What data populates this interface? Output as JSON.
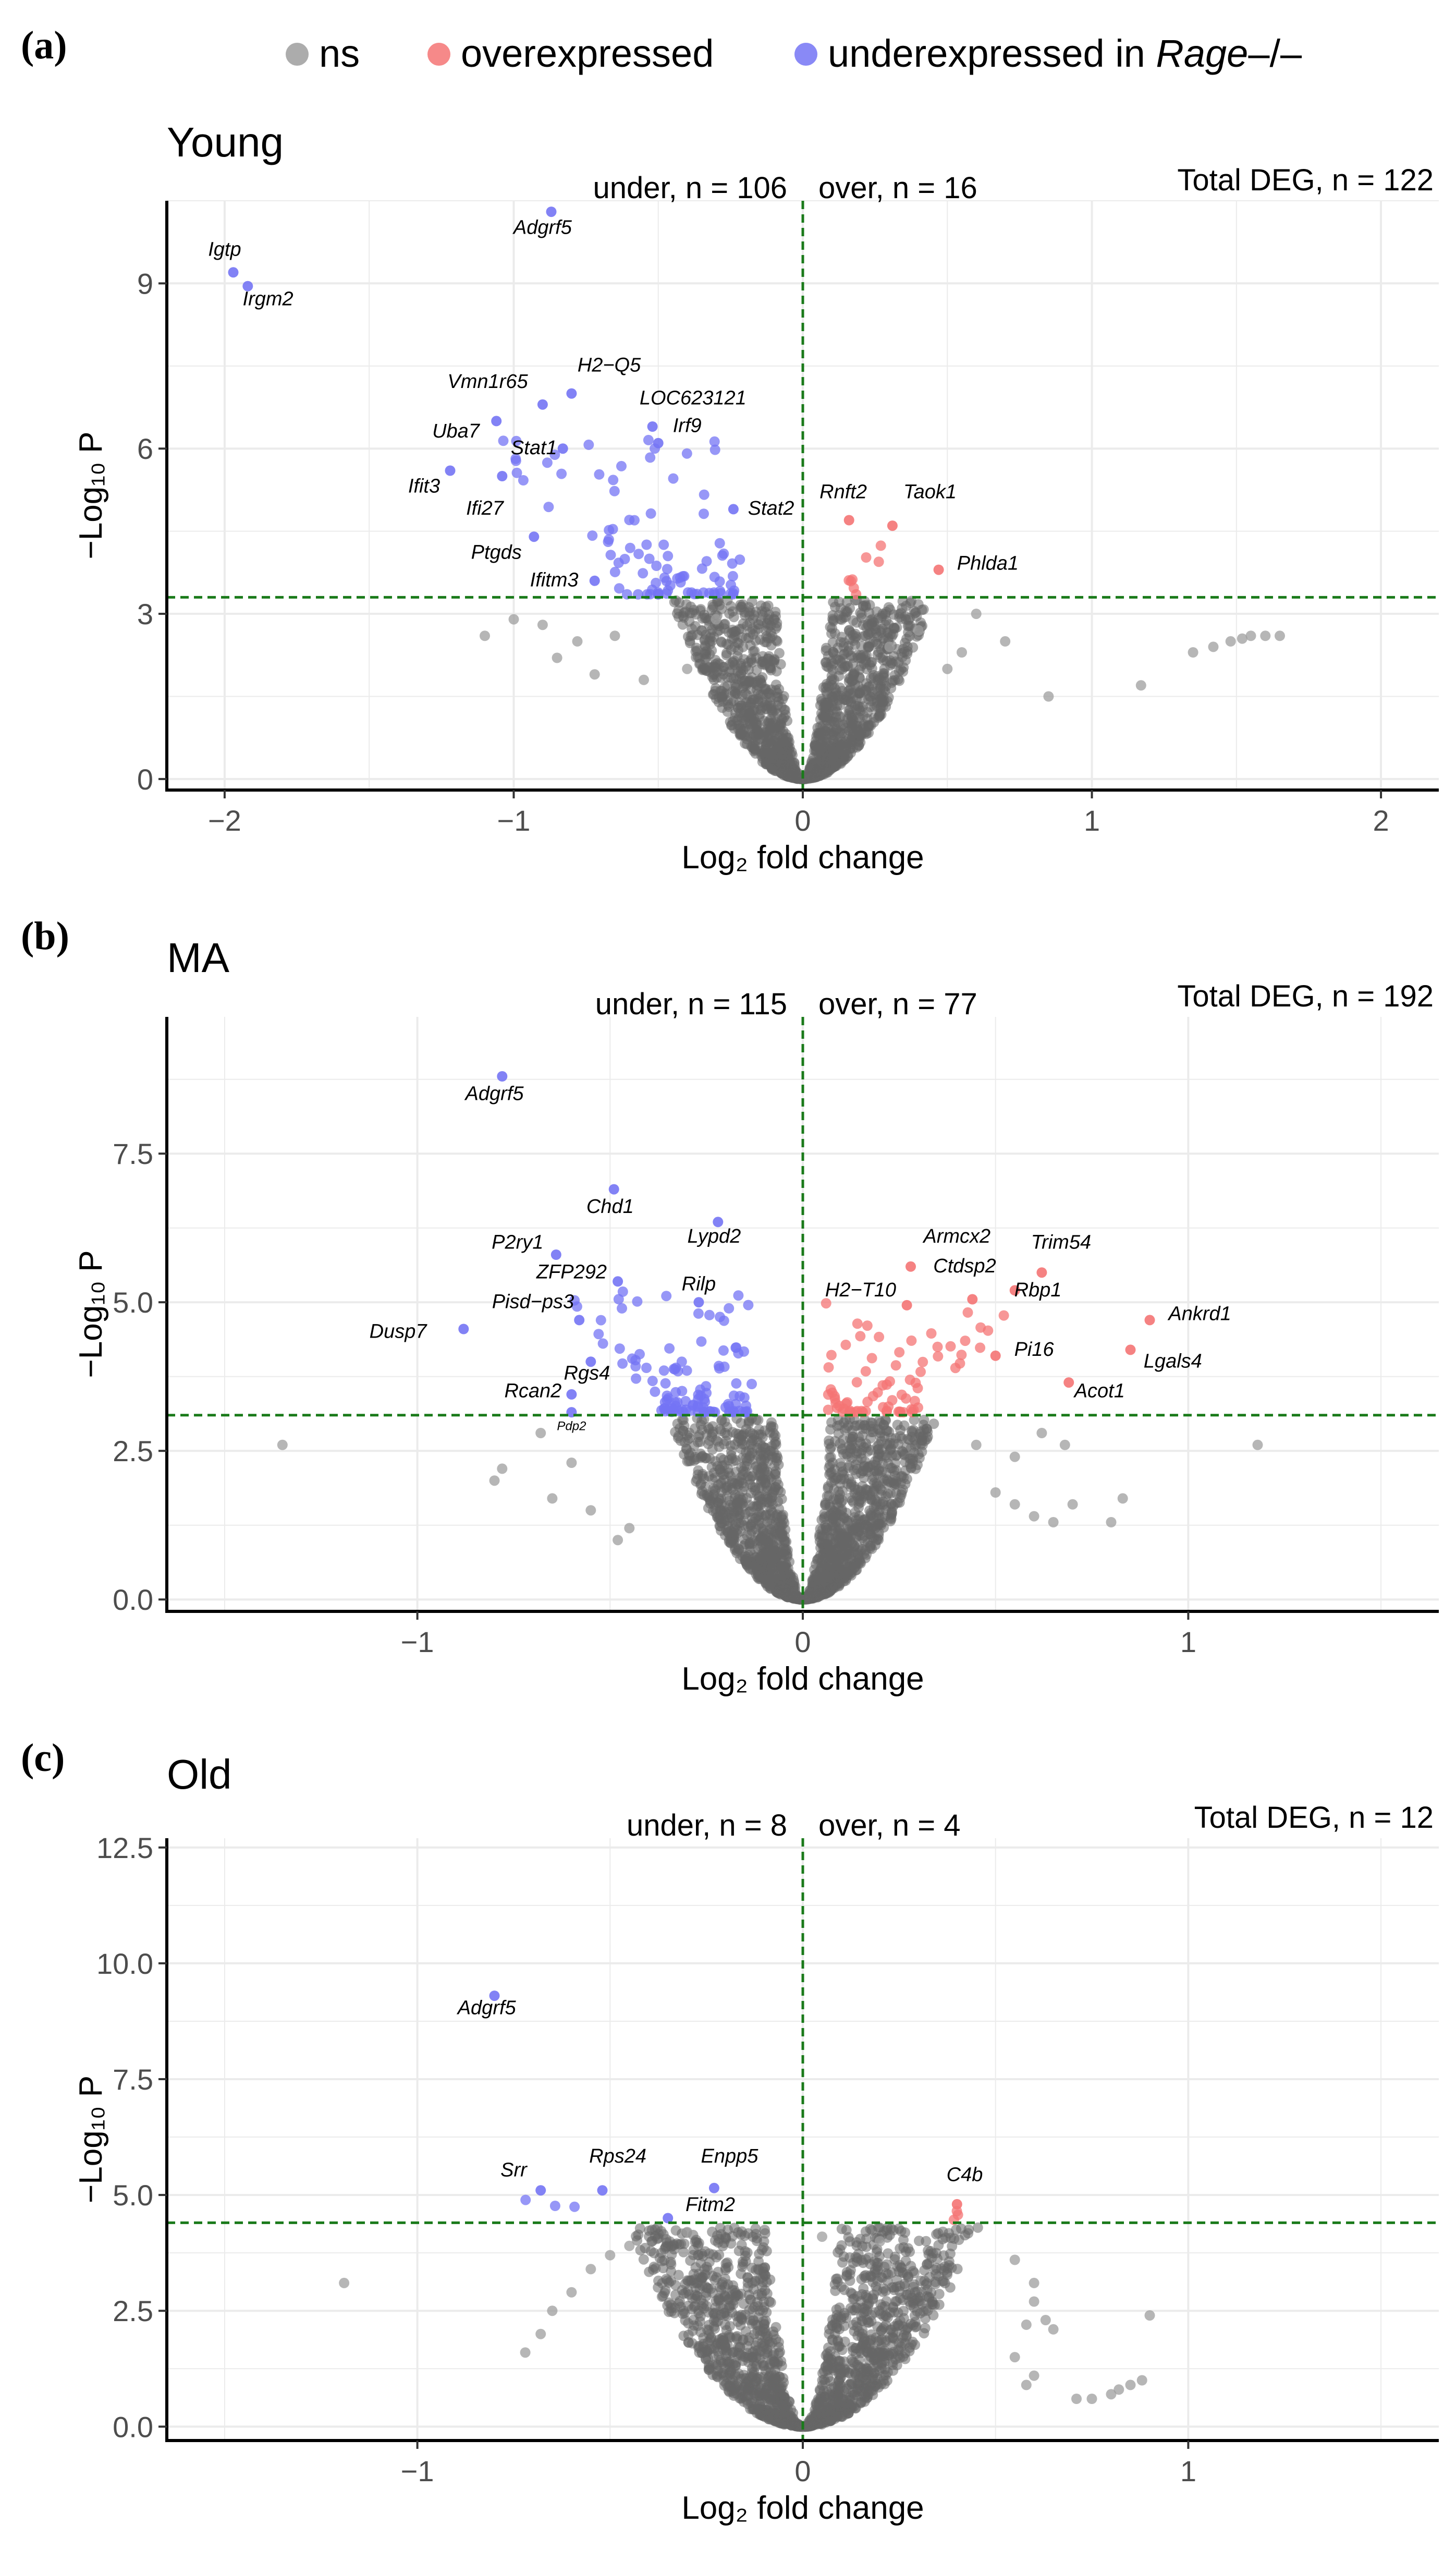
{
  "chart_data": {
    "type": "scatter",
    "subtype": "volcano",
    "legend": {
      "placement": "top",
      "entries": [
        {
          "key": "ns",
          "label": "ns",
          "color": "#9e9e9e"
        },
        {
          "key": "over",
          "label": "overexpressed",
          "color": "#f47474"
        },
        {
          "key": "under",
          "label": "underexpressed in ",
          "label_italic": "Rage",
          "label_suffix": "–/–",
          "color": "#7474f4"
        }
      ]
    },
    "ns_dense_color": "#666666",
    "threshold_line_color": "#1a7a1a",
    "panels": [
      {
        "panel_label": "(a)",
        "title": "Young",
        "under_text": "under, n = 106",
        "over_text": "over, n = 16",
        "total_text": "Total DEG, n = 122",
        "xlabel": "Log₂ fold change",
        "ylabel": "−Log₁₀ P",
        "xlim": [
          -2.2,
          2.2
        ],
        "ylim": [
          -0.2,
          10.5
        ],
        "xticks": [
          -2,
          -1,
          0,
          1,
          2
        ],
        "xtick_labels": [
          "−2",
          "−1",
          "0",
          "1",
          "2"
        ],
        "yticks": [
          0,
          3,
          6,
          9
        ],
        "ytick_labels": [
          "0",
          "3",
          "6",
          "9"
        ],
        "threshold_p": 3.3,
        "seed": 11,
        "cloud": {
          "n": 1500,
          "xspread": 0.17,
          "yscale": 3.2,
          "top": 3.25
        },
        "ns_extra": [
          [
            -0.85,
            2.2
          ],
          [
            -0.72,
            1.9
          ],
          [
            -0.55,
            1.8
          ],
          [
            -0.4,
            2.0
          ],
          [
            -0.9,
            2.8
          ],
          [
            -0.65,
            2.6
          ],
          [
            -0.3,
            2.9
          ],
          [
            0.4,
            2.7
          ],
          [
            0.55,
            2.3
          ],
          [
            0.6,
            3.0
          ],
          [
            0.85,
            1.5
          ],
          [
            1.17,
            1.7
          ],
          [
            1.35,
            2.3
          ],
          [
            1.42,
            2.4
          ],
          [
            1.48,
            2.5
          ],
          [
            1.52,
            2.55
          ],
          [
            1.55,
            2.6
          ],
          [
            1.6,
            2.6
          ],
          [
            1.65,
            2.6
          ],
          [
            -1.1,
            2.6
          ],
          [
            -1.0,
            2.9
          ],
          [
            -0.78,
            2.5
          ],
          [
            0.3,
            2.4
          ],
          [
            0.5,
            2.0
          ],
          [
            0.7,
            2.5
          ]
        ],
        "genes": [
          {
            "label": "Igtp",
            "x": -1.97,
            "y": 9.2,
            "type": "under",
            "lx": -2.0,
            "ly": 9.5
          },
          {
            "label": "Irgm2",
            "x": -1.92,
            "y": 8.95,
            "type": "under",
            "lx": -1.85,
            "ly": 8.6
          },
          {
            "label": "Adgrf5",
            "x": -0.87,
            "y": 10.3,
            "type": "under",
            "lx": -0.9,
            "ly": 9.9
          },
          {
            "label": "H2−Q5",
            "x": -0.8,
            "y": 7.0,
            "type": "under",
            "lx": -0.67,
            "ly": 7.4
          },
          {
            "label": "Vmn1r65",
            "x": -0.9,
            "y": 6.8,
            "type": "under",
            "lx": -1.09,
            "ly": 7.1
          },
          {
            "label": "LOC623121",
            "x": -0.52,
            "y": 6.4,
            "type": "under",
            "lx": -0.38,
            "ly": 6.8
          },
          {
            "label": "Uba7",
            "x": -1.06,
            "y": 6.5,
            "type": "under",
            "lx": -1.2,
            "ly": 6.2
          },
          {
            "label": "Stat1",
            "x": -0.83,
            "y": 6.0,
            "type": "under",
            "lx": -0.93,
            "ly": 5.9
          },
          {
            "label": "Irf9",
            "x": -0.5,
            "y": 6.1,
            "type": "under",
            "lx": -0.4,
            "ly": 6.3
          },
          {
            "label": "Ifit3",
            "x": -1.22,
            "y": 5.6,
            "type": "under",
            "lx": -1.31,
            "ly": 5.2
          },
          {
            "label": "Ifi27",
            "x": -1.04,
            "y": 5.5,
            "type": "under",
            "lx": -1.1,
            "ly": 4.8
          },
          {
            "label": "Stat2",
            "x": -0.24,
            "y": 4.9,
            "type": "under",
            "lx": -0.11,
            "ly": 4.8
          },
          {
            "label": "Ptgds",
            "x": -0.93,
            "y": 4.4,
            "type": "under",
            "lx": -1.06,
            "ly": 4.0
          },
          {
            "label": "Ifitm3",
            "x": -0.72,
            "y": 3.6,
            "type": "under",
            "lx": -0.86,
            "ly": 3.5
          },
          {
            "label": "Rnft2",
            "x": 0.16,
            "y": 4.7,
            "type": "over",
            "lx": 0.14,
            "ly": 5.1
          },
          {
            "label": "Taok1",
            "x": 0.31,
            "y": 4.6,
            "type": "over",
            "lx": 0.44,
            "ly": 5.1
          },
          {
            "label": "Phlda1",
            "x": 0.47,
            "y": 3.8,
            "type": "over",
            "lx": 0.64,
            "ly": 3.8
          }
        ],
        "sig_extra": [
          {
            "type": "under",
            "n": 90,
            "xmin": -1.15,
            "xmax": -0.2,
            "ymin": 3.35,
            "ymax": 6.4,
            "bias": 2.2
          },
          {
            "type": "over",
            "n": 8,
            "xmin": 0.12,
            "xmax": 0.32,
            "ymin": 3.35,
            "ymax": 4.4,
            "bias": 1.5
          }
        ]
      },
      {
        "panel_label": "(b)",
        "title": "MA",
        "under_text": "under, n = 115",
        "over_text": "over, n = 77",
        "total_text": "Total DEG, n = 192",
        "xlabel": "Log₂ fold change",
        "ylabel": "−Log₁₀ P",
        "xlim": [
          -1.65,
          1.65
        ],
        "ylim": [
          -0.2,
          9.8
        ],
        "xticks": [
          -1,
          0,
          1
        ],
        "xtick_labels": [
          "−1",
          "0",
          "1"
        ],
        "yticks": [
          0,
          2.5,
          5,
          7.5
        ],
        "ytick_labels": [
          "0.0",
          "2.5",
          "5.0",
          "7.5"
        ],
        "threshold_p": 3.1,
        "seed": 23,
        "cloud": {
          "n": 1700,
          "xspread": 0.13,
          "yscale": 3.0,
          "top": 3.05
        },
        "ns_extra": [
          [
            -1.35,
            2.6
          ],
          [
            -0.78,
            2.2
          ],
          [
            -0.8,
            2.0
          ],
          [
            -0.65,
            1.7
          ],
          [
            -0.55,
            1.5
          ],
          [
            -0.48,
            1.0
          ],
          [
            -0.6,
            2.3
          ],
          [
            -0.45,
            1.2
          ],
          [
            0.5,
            1.8
          ],
          [
            0.55,
            1.6
          ],
          [
            0.6,
            1.4
          ],
          [
            0.65,
            1.3
          ],
          [
            0.68,
            2.6
          ],
          [
            0.7,
            1.6
          ],
          [
            0.8,
            1.3
          ],
          [
            0.83,
            1.7
          ],
          [
            1.18,
            2.6
          ],
          [
            0.55,
            2.4
          ],
          [
            0.62,
            2.8
          ],
          [
            -0.68,
            2.8
          ],
          [
            0.45,
            2.6
          ]
        ],
        "genes": [
          {
            "label": "Adgrf5",
            "x": -0.78,
            "y": 8.8,
            "type": "under",
            "lx": -0.8,
            "ly": 8.4
          },
          {
            "label": "Chd1",
            "x": -0.49,
            "y": 6.9,
            "type": "under",
            "lx": -0.5,
            "ly": 6.5
          },
          {
            "label": "Lypd2",
            "x": -0.22,
            "y": 6.35,
            "type": "under",
            "lx": -0.23,
            "ly": 6.0
          },
          {
            "label": "P2ry1",
            "x": -0.64,
            "y": 5.8,
            "type": "under",
            "lx": -0.74,
            "ly": 5.9
          },
          {
            "label": "ZFP292",
            "x": -0.48,
            "y": 5.35,
            "type": "under",
            "lx": -0.6,
            "ly": 5.4
          },
          {
            "label": "Pisd−ps3",
            "x": -0.58,
            "y": 4.7,
            "type": "under",
            "lx": -0.7,
            "ly": 4.9
          },
          {
            "label": "Rilp",
            "x": -0.27,
            "y": 5.0,
            "type": "under",
            "lx": -0.27,
            "ly": 5.2
          },
          {
            "label": "Dusp7",
            "x": -0.88,
            "y": 4.55,
            "type": "under",
            "lx": -1.05,
            "ly": 4.4
          },
          {
            "label": "Rgs4",
            "x": -0.55,
            "y": 4.0,
            "type": "under",
            "lx": -0.56,
            "ly": 3.7
          },
          {
            "label": "Rcan2",
            "x": -0.6,
            "y": 3.45,
            "type": "under",
            "lx": -0.7,
            "ly": 3.4
          },
          {
            "label": "Pdp2",
            "x": -0.6,
            "y": 3.15,
            "type": "under",
            "lx": -0.6,
            "ly": 2.85,
            "small": true
          },
          {
            "label": "Armcx2",
            "x": 0.28,
            "y": 5.6,
            "type": "over",
            "lx": 0.4,
            "ly": 6.0
          },
          {
            "label": "Trim54",
            "x": 0.62,
            "y": 5.5,
            "type": "over",
            "lx": 0.67,
            "ly": 5.9
          },
          {
            "label": "Ctdsp2",
            "x": 0.44,
            "y": 5.05,
            "type": "over",
            "lx": 0.42,
            "ly": 5.5
          },
          {
            "label": "Rbp1",
            "x": 0.55,
            "y": 5.2,
            "type": "over",
            "lx": 0.61,
            "ly": 5.1
          },
          {
            "label": "H2−T10",
            "x": 0.27,
            "y": 4.95,
            "type": "over",
            "lx": 0.15,
            "ly": 5.1
          },
          {
            "label": "Ankrd1",
            "x": 0.9,
            "y": 4.7,
            "type": "over",
            "lx": 1.03,
            "ly": 4.7
          },
          {
            "label": "Pi16",
            "x": 0.5,
            "y": 4.1,
            "type": "over",
            "lx": 0.6,
            "ly": 4.1
          },
          {
            "label": "Lgals4",
            "x": 0.85,
            "y": 4.2,
            "type": "over",
            "lx": 0.96,
            "ly": 3.9
          },
          {
            "label": "Acot1",
            "x": 0.69,
            "y": 3.65,
            "type": "over",
            "lx": 0.77,
            "ly": 3.4
          }
        ],
        "sig_extra": [
          {
            "type": "under",
            "n": 110,
            "xmin": -0.65,
            "xmax": -0.13,
            "ymin": 3.15,
            "ymax": 5.2,
            "bias": 2.4
          },
          {
            "type": "over",
            "n": 75,
            "xmin": 0.06,
            "xmax": 0.6,
            "ymin": 3.15,
            "ymax": 5.0,
            "bias": 2.6
          }
        ]
      },
      {
        "panel_label": "(c)",
        "title": "Old",
        "under_text": "under, n = 8",
        "over_text": "over, n = 4",
        "total_text": "Total DEG, n = 12",
        "xlabel": "Log₂ fold change",
        "ylabel": "−Log₁₀ P",
        "xlim": [
          -1.65,
          1.65
        ],
        "ylim": [
          -0.3,
          12.7
        ],
        "xticks": [
          -1,
          0,
          1
        ],
        "xtick_labels": [
          "−1",
          "0",
          "1"
        ],
        "yticks": [
          0,
          2.5,
          5,
          7.5,
          10,
          12.5
        ],
        "ytick_labels": [
          "0.0",
          "2.5",
          "5.0",
          "7.5",
          "10.0",
          "12.5"
        ],
        "threshold_p": 4.4,
        "seed": 37,
        "cloud": {
          "n": 1600,
          "xspread": 0.15,
          "yscale": 3.2,
          "top": 4.3
        },
        "ns_extra": [
          [
            -1.19,
            3.1
          ],
          [
            -0.72,
            1.6
          ],
          [
            -0.68,
            2.0
          ],
          [
            -0.65,
            2.5
          ],
          [
            -0.6,
            2.9
          ],
          [
            -0.55,
            3.4
          ],
          [
            -0.5,
            3.7
          ],
          [
            -0.45,
            3.9
          ],
          [
            0.55,
            3.6
          ],
          [
            0.6,
            3.1
          ],
          [
            0.6,
            2.7
          ],
          [
            0.58,
            2.2
          ],
          [
            0.55,
            1.5
          ],
          [
            0.6,
            1.1
          ],
          [
            0.58,
            0.9
          ],
          [
            0.63,
            2.3
          ],
          [
            0.65,
            2.1
          ],
          [
            0.71,
            0.6
          ],
          [
            0.75,
            0.6
          ],
          [
            0.8,
            0.7
          ],
          [
            0.82,
            0.8
          ],
          [
            0.85,
            0.9
          ],
          [
            0.88,
            1.0
          ],
          [
            0.9,
            2.4
          ],
          [
            -0.3,
            4.2
          ],
          [
            0.2,
            4.0
          ],
          [
            0.05,
            4.1
          ]
        ],
        "genes": [
          {
            "label": "Adgrf5",
            "x": -0.8,
            "y": 9.3,
            "type": "under",
            "lx": -0.82,
            "ly": 8.9
          },
          {
            "label": "Srr",
            "x": -0.68,
            "y": 5.1,
            "type": "under",
            "lx": -0.75,
            "ly": 5.4
          },
          {
            "label": "Rps24",
            "x": -0.52,
            "y": 5.1,
            "type": "under",
            "lx": -0.48,
            "ly": 5.7
          },
          {
            "label": "Enpp5",
            "x": -0.23,
            "y": 5.15,
            "type": "under",
            "lx": -0.19,
            "ly": 5.7
          },
          {
            "label": "Fitm2",
            "x": -0.35,
            "y": 4.5,
            "type": "under",
            "lx": -0.24,
            "ly": 4.65
          },
          {
            "label": "C4b",
            "x": 0.4,
            "y": 4.8,
            "type": "over",
            "lx": 0.42,
            "ly": 5.3
          }
        ],
        "sig_extra": [
          {
            "type": "under",
            "n": 3,
            "xmin": -0.8,
            "xmax": -0.58,
            "ymin": 4.5,
            "ymax": 4.9,
            "bias": 1.0
          },
          {
            "type": "over",
            "n": 3,
            "xmin": 0.39,
            "xmax": 0.42,
            "ymin": 4.45,
            "ymax": 4.9,
            "bias": 1.0
          }
        ]
      }
    ]
  }
}
